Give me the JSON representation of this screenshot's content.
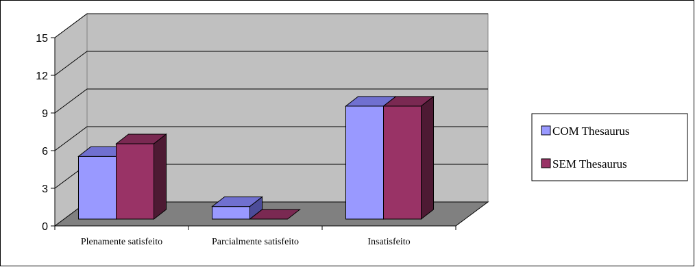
{
  "chart_data": {
    "type": "bar",
    "categories": [
      "Plenamente satisfeito",
      "Parcialmente satisfeito",
      "Insatisfeito"
    ],
    "series": [
      {
        "name": "COM Thesaurus",
        "values": [
          5,
          1,
          9
        ]
      },
      {
        "name": "SEM Thesaurus",
        "values": [
          6,
          0,
          9
        ]
      }
    ],
    "ylim": [
      0,
      15
    ],
    "yticks": [
      "0",
      "3",
      "6",
      "9",
      "12",
      "15"
    ],
    "grid": true,
    "legend_position": "right",
    "colors": {
      "com_front": "#9999FF",
      "com_top": "#7070D0",
      "com_side": "#4C4C99",
      "sem_front": "#993366",
      "sem_top": "#7A2952",
      "sem_side": "#4D1A33",
      "wall": "#C0C0C0",
      "floor": "#808080"
    }
  }
}
